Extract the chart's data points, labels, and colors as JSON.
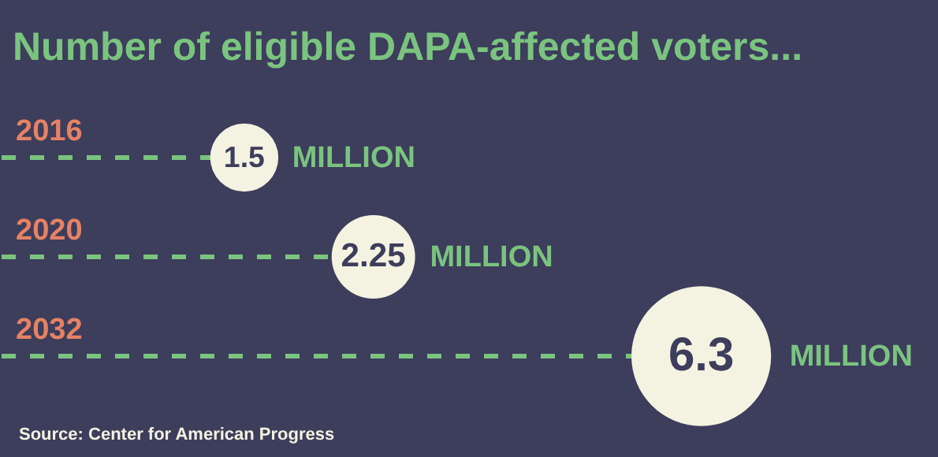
{
  "chart_data": {
    "type": "other",
    "title": "Number of eligible DAPA-affected voters...",
    "categories": [
      "2016",
      "2020",
      "2032"
    ],
    "values": [
      1.5,
      2.25,
      6.3
    ],
    "color": "#f4f2e1",
    "data_labels": true,
    "annotations": [
      "MILLION",
      "MILLION",
      "MILLION",
      "Source: Center for American Progress"
    ]
  }
}
